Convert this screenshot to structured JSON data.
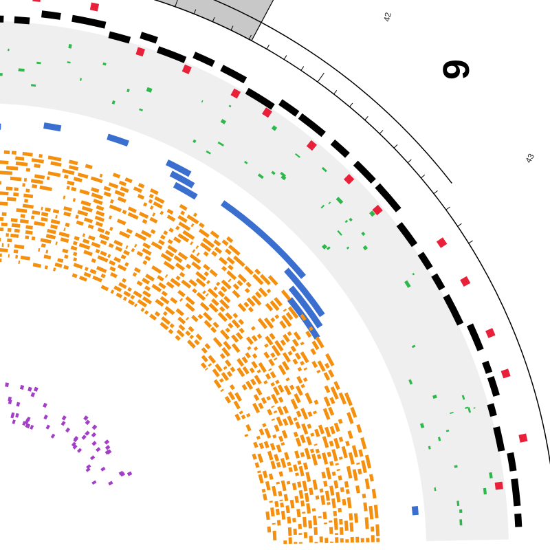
{
  "chromosome": {
    "label": "9",
    "tick_labels": [
      "42",
      "43"
    ],
    "highlight_color": "#c8c8c8"
  },
  "tracks": {
    "outer_segments": {
      "color": "#000000"
    },
    "red_markers": {
      "color": "#e8203a"
    },
    "green_features": {
      "color": "#2db84a",
      "band_color": "#efefef"
    },
    "blue_features": {
      "color": "#3a6fcf"
    },
    "orange_stack": {
      "color": "#f5900f"
    },
    "purple_markers": {
      "color": "#a23ec8"
    }
  }
}
